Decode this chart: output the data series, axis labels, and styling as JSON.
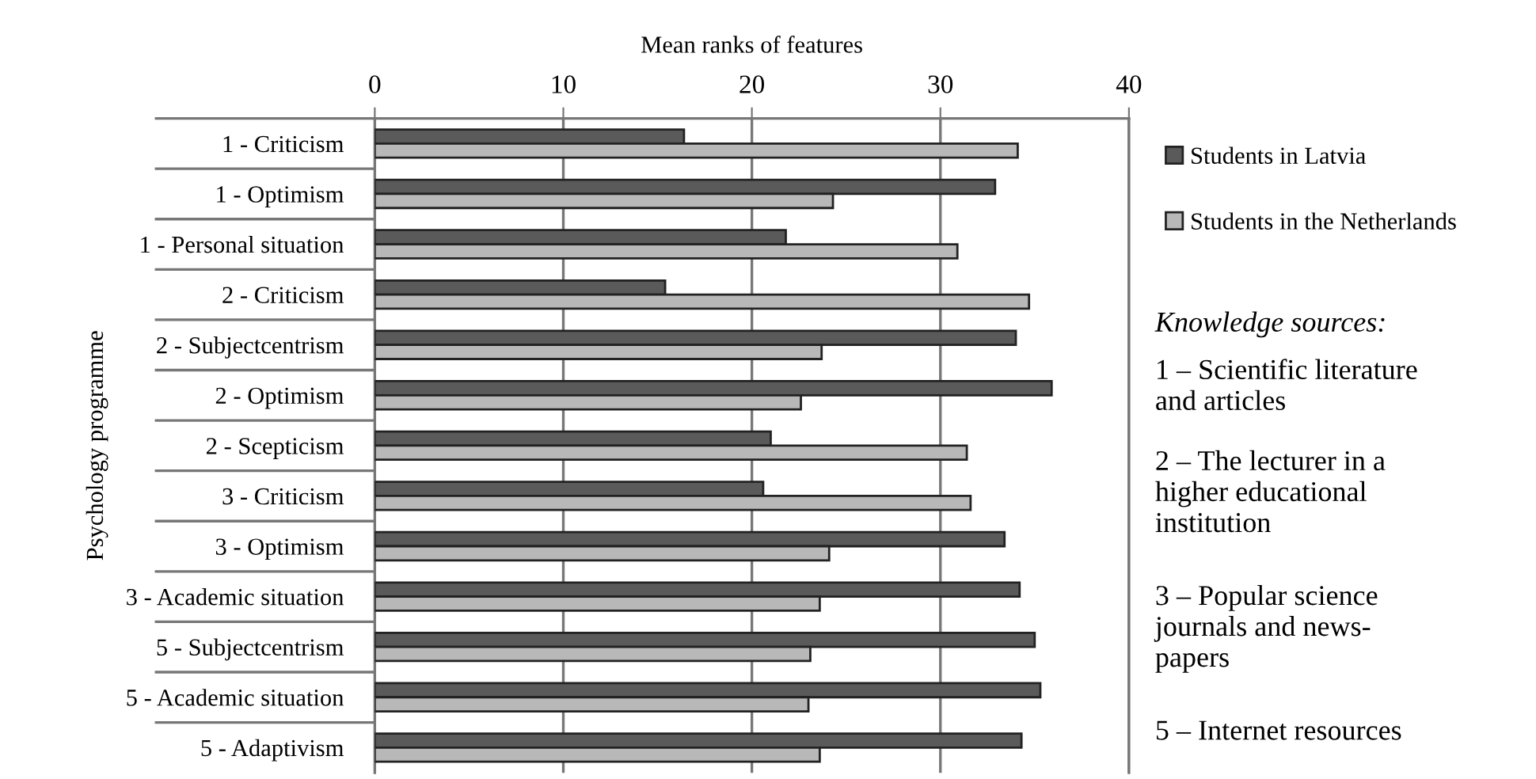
{
  "chart_data": {
    "type": "bar",
    "orientation": "horizontal",
    "xlabel": "Mean ranks of features",
    "ylabel": "Psychology programme",
    "categories": [
      "1 - Criticism",
      "1 - Optimism",
      "1 - Personal situation",
      "2 - Criticism",
      "2 - Subjectcentrism",
      "2 - Optimism",
      "2 - Scepticism",
      "3 - Criticism",
      "3 - Optimism",
      "3 - Academic situation",
      "5 - Subjectcentrism",
      "5 - Academic situation",
      "5 - Adaptivism"
    ],
    "series": [
      {
        "name": "Students in Latvia",
        "color": "#5a5a5a",
        "values": [
          16.4,
          32.9,
          21.8,
          15.4,
          34.0,
          35.9,
          21.0,
          20.6,
          33.4,
          34.2,
          35.0,
          35.3,
          34.3
        ]
      },
      {
        "name": "Students in the Netherlands",
        "color": "#b8b8b8",
        "values": [
          34.1,
          24.3,
          30.9,
          34.7,
          23.7,
          22.6,
          31.4,
          31.6,
          24.1,
          23.6,
          23.1,
          23.0,
          23.6
        ]
      }
    ],
    "xlim": [
      0,
      40
    ],
    "xticks": [
      0,
      10,
      20,
      30,
      40
    ],
    "grid": "x",
    "legend": "top right",
    "annotations": [
      "Knowledge sources:",
      "1 – Scientific literature\nand articles",
      "2 – The lecturer in a\nhigher educational\ninstitution",
      "3 – Popular science\njournals and news-\npapers",
      "5 – Internet resources"
    ]
  }
}
